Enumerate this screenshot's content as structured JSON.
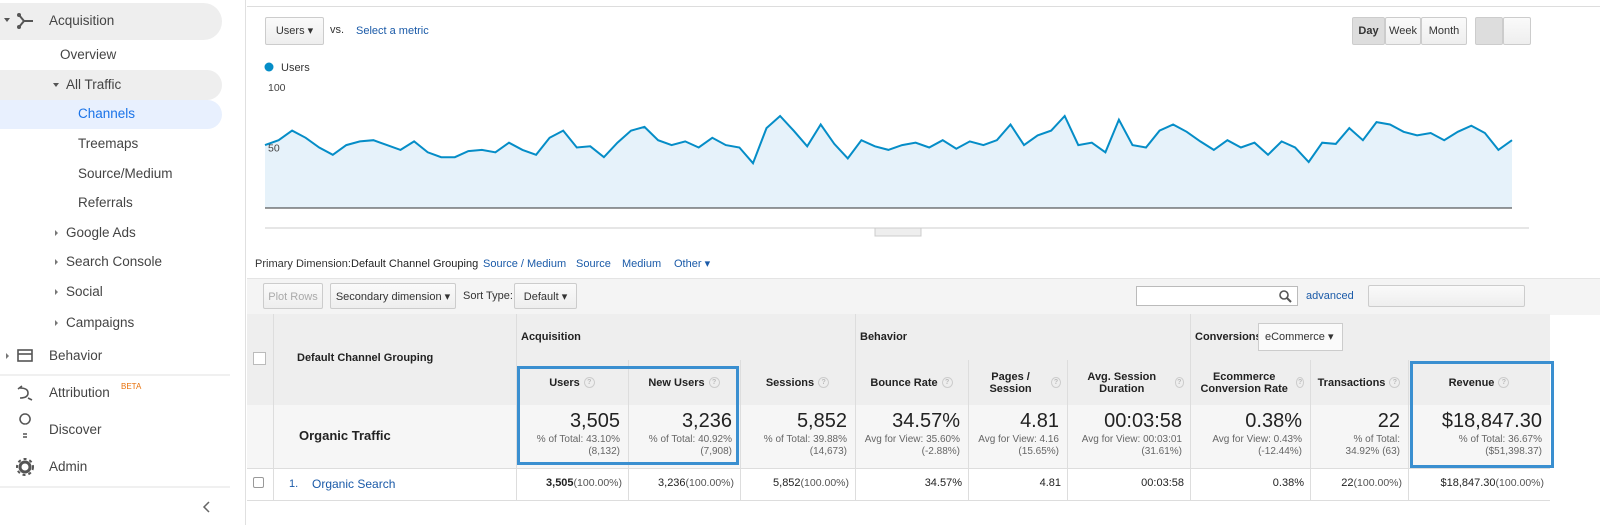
{
  "sidebar": {
    "items": [
      {
        "label": "Acquisition"
      },
      {
        "label": "Overview"
      },
      {
        "label": "All Traffic"
      },
      {
        "label": "Channels"
      },
      {
        "label": "Treemaps"
      },
      {
        "label": "Source/Medium"
      },
      {
        "label": "Referrals"
      },
      {
        "label": "Google Ads"
      },
      {
        "label": "Search Console"
      },
      {
        "label": "Social"
      },
      {
        "label": "Campaigns"
      },
      {
        "label": "Behavior"
      },
      {
        "label": "Attribution",
        "badge": "BETA"
      },
      {
        "label": "Discover"
      },
      {
        "label": "Admin"
      }
    ]
  },
  "toolbar": {
    "metric": "Users",
    "vs": "vs.",
    "compare": "Select a metric",
    "intervals": [
      "Day",
      "Week",
      "Month"
    ]
  },
  "chart_data": {
    "type": "line",
    "series": [
      {
        "name": "Users",
        "color": "#058dc7",
        "values": [
          52,
          56,
          64,
          58,
          50,
          44,
          52,
          55,
          56,
          52,
          48,
          55,
          46,
          42,
          42,
          47,
          48,
          46,
          54,
          48,
          44,
          58,
          64,
          50,
          51,
          42,
          54,
          64,
          67,
          56,
          52,
          55,
          50,
          58,
          52,
          50,
          37,
          66,
          76,
          64,
          51,
          69,
          53,
          41,
          56,
          51,
          48,
          52,
          54,
          50,
          56,
          49,
          55,
          52,
          56,
          69,
          52,
          60,
          64,
          76,
          52,
          54,
          46,
          73,
          52,
          50,
          64,
          69,
          63,
          55,
          48,
          56,
          50,
          54,
          44,
          55,
          50,
          38,
          54,
          53,
          66,
          56,
          71,
          69,
          63,
          60,
          62,
          56,
          63,
          68,
          62,
          48,
          56
        ]
      }
    ],
    "ylim": [
      0,
      100
    ],
    "yticks": [
      50,
      100
    ],
    "grid": false
  },
  "dimensions": {
    "label": "Primary Dimension:",
    "selected": "Default Channel Grouping",
    "options": [
      "Source / Medium",
      "Source",
      "Medium",
      "Other"
    ]
  },
  "controls": {
    "plot_rows": "Plot Rows",
    "secondary": "Secondary dimension",
    "sort_label": "Sort Type:",
    "sort": "Default",
    "advanced": "advanced"
  },
  "table": {
    "dimension_header": "Default Channel Grouping",
    "groups": [
      {
        "label": "Acquisition"
      },
      {
        "label": "Behavior"
      },
      {
        "label": "Conversions",
        "select": "eCommerce"
      }
    ],
    "columns": [
      "Users",
      "New Users",
      "Sessions",
      "Bounce Rate",
      "Pages / Session",
      "Avg. Session Duration",
      "Ecommerce Conversion Rate",
      "Transactions",
      "Revenue"
    ],
    "totals": {
      "label": "Organic Traffic",
      "cells": [
        {
          "value": "3,505",
          "note": "% of Total: 43.10% (8,132)"
        },
        {
          "value": "3,236",
          "note": "% of Total: 40.92% (7,908)"
        },
        {
          "value": "5,852",
          "note": "% of Total: 39.88% (14,673)"
        },
        {
          "value": "34.57%",
          "note": "Avg for View: 35.60% (-2.88%)"
        },
        {
          "value": "4.81",
          "note": "Avg for View: 4.16 (15.65%)"
        },
        {
          "value": "00:03:58",
          "note": "Avg for View: 00:03:01 (31.61%)"
        },
        {
          "value": "0.38%",
          "note": "Avg for View: 0.43% (-12.44%)"
        },
        {
          "value": "22",
          "note": "% of Total: 34.92% (63)"
        },
        {
          "value": "$18,847.30",
          "note": "% of Total: 36.67% ($51,398.37)"
        }
      ]
    },
    "rows": [
      {
        "index": "1.",
        "label": "Organic Search",
        "cells": [
          {
            "value": "3,505",
            "share": "(100.00%)"
          },
          {
            "value": "3,236",
            "share": "(100.00%)"
          },
          {
            "value": "5,852",
            "share": "(100.00%)"
          },
          {
            "value": "34.57%"
          },
          {
            "value": "4.81"
          },
          {
            "value": "00:03:58"
          },
          {
            "value": "0.38%"
          },
          {
            "value": "22",
            "share": "(100.00%)"
          },
          {
            "value": "$18,847.30",
            "share": "(100.00%)"
          }
        ]
      }
    ]
  }
}
